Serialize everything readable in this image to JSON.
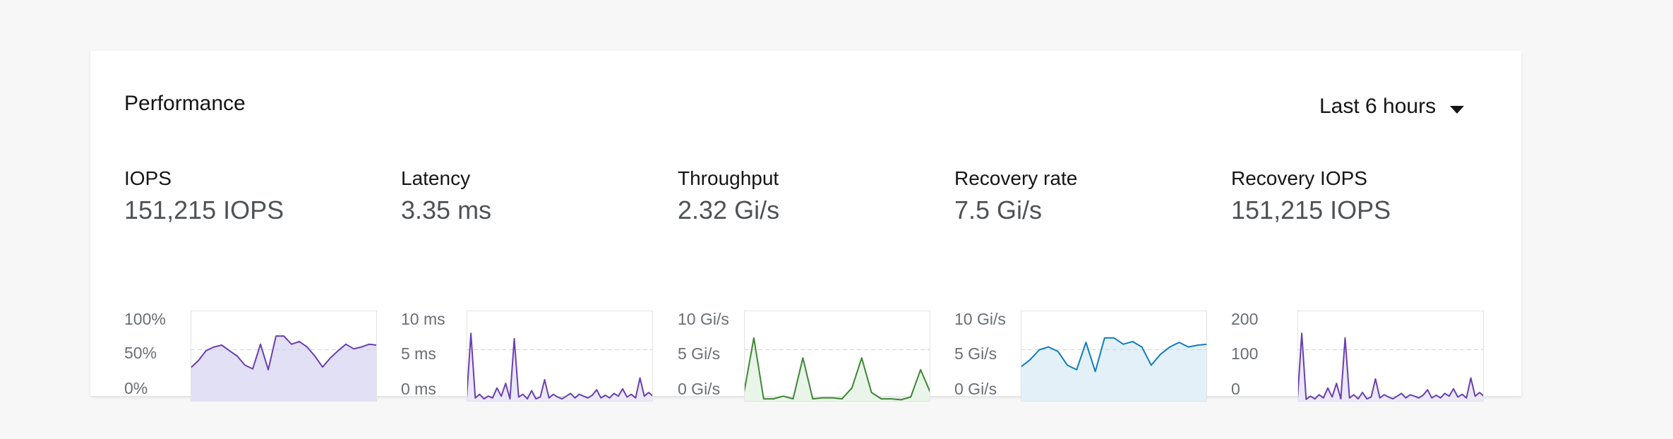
{
  "card": {
    "title": "Performance",
    "time_range": {
      "selected": "Last 6 hours",
      "icon": "caret-down-icon"
    }
  },
  "metrics": [
    {
      "label": "IOPS",
      "value": "151,215 IOPS",
      "ticks": [
        "100%",
        "50%",
        "0%"
      ],
      "color": "#6a3fb0",
      "fill": "#e2e0f5",
      "chart_data": {
        "type": "area",
        "ylim": [
          0,
          100
        ],
        "values": [
          37,
          45,
          56,
          60,
          62,
          56,
          50,
          40,
          36,
          63,
          35,
          72,
          72,
          63,
          66,
          60,
          50,
          38,
          48,
          56,
          63,
          58,
          60,
          63,
          62
        ]
      }
    },
    {
      "label": "Latency",
      "value": "3.35 ms",
      "ticks": [
        "10 ms",
        "5 ms",
        "0 ms"
      ],
      "color": "#6a3fb0",
      "fill": "#ebe8f8",
      "chart_data": {
        "type": "area",
        "ylim": [
          0,
          10
        ],
        "values": [
          0.3,
          7.5,
          0.4,
          0.8,
          0.3,
          0.6,
          0.4,
          1.5,
          0.6,
          2.0,
          0.3,
          6.9,
          0.5,
          0.8,
          0.3,
          1.2,
          0.3,
          0.5,
          2.4,
          0.4,
          0.8,
          0.5,
          0.3,
          0.6,
          0.9,
          0.4,
          0.8,
          0.6,
          0.4,
          0.7,
          1.3,
          0.4,
          0.7,
          0.4,
          0.9,
          0.6,
          1.4,
          0.5,
          0.8,
          0.4,
          2.6,
          0.6,
          1.0,
          0.6
        ]
      }
    },
    {
      "label": "Throughput",
      "value": "2.32 Gi/s",
      "ticks": [
        "10 Gi/s",
        "5 Gi/s",
        "0 Gi/s"
      ],
      "color": "#3e8635",
      "fill": "#eaf5ea",
      "chart_data": {
        "type": "area",
        "ylim": [
          0,
          10
        ],
        "values": [
          1.0,
          7.0,
          0.3,
          0.3,
          0.6,
          0.3,
          4.8,
          0.3,
          0.4,
          0.4,
          0.3,
          1.5,
          4.8,
          1.0,
          0.3,
          0.3,
          0.2,
          0.5,
          3.5,
          1.0
        ]
      }
    },
    {
      "label": "Recovery rate",
      "value": "7.5 Gi/s",
      "ticks": [
        "10 Gi/s",
        "5 Gi/s",
        "0 Gi/s"
      ],
      "color": "#0f7dbe",
      "fill": "#e3f0f8",
      "chart_data": {
        "type": "area",
        "ylim": [
          0,
          10
        ],
        "values": [
          3.8,
          4.6,
          5.7,
          6.0,
          5.5,
          4.0,
          3.5,
          6.5,
          3.3,
          7.0,
          7.0,
          6.3,
          6.6,
          6.0,
          4.0,
          5.2,
          6.0,
          6.5,
          6.0,
          6.2,
          6.3
        ]
      }
    },
    {
      "label": "Recovery IOPS",
      "value": "151,215 IOPS",
      "ticks": [
        "200",
        "100",
        "0"
      ],
      "color": "#6a3fb0",
      "fill": "#ebe8f8",
      "chart_data": {
        "type": "area",
        "ylim": [
          0,
          200
        ],
        "values": [
          5,
          150,
          5,
          12,
          6,
          15,
          8,
          30,
          10,
          40,
          6,
          140,
          8,
          15,
          6,
          20,
          6,
          10,
          50,
          8,
          15,
          10,
          6,
          12,
          18,
          8,
          15,
          12,
          8,
          14,
          26,
          8,
          14,
          8,
          18,
          12,
          28,
          10,
          16,
          8,
          52,
          12,
          20,
          12
        ]
      }
    }
  ]
}
